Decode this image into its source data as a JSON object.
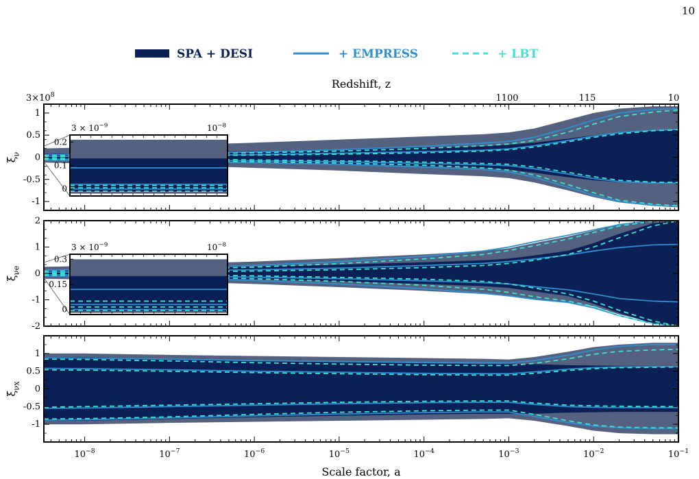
{
  "page_number": "10",
  "colors": {
    "outer_band": "#54617f",
    "inner_band": "#0b2057",
    "empress_line": "#2f8fd0",
    "lbt_line": "#3ee4cf",
    "legend_spa": "#0b2057",
    "legend_empress_text": "#2f8fd0",
    "legend_lbt_text": "#3ee4cf"
  },
  "chart_data": {
    "type": "area",
    "legend": {
      "placement": "top-center",
      "entries": [
        {
          "label": "SPA + DESI",
          "style": "band"
        },
        {
          "label": "+ EMPRESS",
          "style": "solid"
        },
        {
          "label": "+ LBT",
          "style": "dashed"
        }
      ]
    },
    "x_axis": {
      "label": "Scale factor, a",
      "scale": "log",
      "range": [
        3.3e-09,
        0.1
      ],
      "tick_labels": [
        "10^-8",
        "10^-7",
        "10^-6",
        "10^-5",
        "10^-4",
        "10^-3",
        "10^-2",
        "10^-1"
      ]
    },
    "top_axis": {
      "label": "Redshift, z",
      "tick_labels": [
        "3×10^8",
        "1100",
        "115",
        "10"
      ]
    },
    "x": [
      3.3e-09,
      1e-08,
      1e-07,
      1e-06,
      1e-05,
      0.0001,
      0.0005,
      0.001,
      0.002,
      0.005,
      0.01,
      0.02,
      0.05,
      0.1
    ],
    "panels": [
      {
        "ylabel": "ξ_ν",
        "ylim": [
          -1.2,
          1.2
        ],
        "y_tick_labels": [
          "1",
          "0.5",
          "0",
          "-0.5",
          "-1"
        ],
        "outer_band": {
          "upper": [
            0.2,
            0.22,
            0.27,
            0.33,
            0.4,
            0.47,
            0.52,
            0.56,
            0.65,
            0.85,
            1.0,
            1.1,
            1.15,
            1.15
          ],
          "lower": [
            -0.12,
            -0.14,
            -0.18,
            -0.24,
            -0.3,
            -0.38,
            -0.43,
            -0.47,
            -0.57,
            -0.75,
            -0.9,
            -1.02,
            -1.1,
            -1.13
          ]
        },
        "inner_band": {
          "upper": [
            0.08,
            0.09,
            0.11,
            0.14,
            0.17,
            0.22,
            0.25,
            0.28,
            0.33,
            0.42,
            0.5,
            0.57,
            0.62,
            0.64
          ],
          "lower": [
            -0.06,
            -0.07,
            -0.09,
            -0.12,
            -0.15,
            -0.2,
            -0.24,
            -0.28,
            -0.35,
            -0.45,
            -0.52,
            -0.56,
            -0.58,
            -0.58
          ]
        },
        "series": [
          {
            "name": "+ EMPRESS",
            "values": [
              0.06,
              0.07,
              0.09,
              0.12,
              0.17,
              0.25,
              0.32,
              0.36,
              0.45,
              0.66,
              0.84,
              1.0,
              1.08,
              1.1
            ]
          },
          {
            "name": "+ EMPRESS",
            "values": [
              0.02,
              0.03,
              0.04,
              0.06,
              0.09,
              0.13,
              0.16,
              0.19,
              0.26,
              0.38,
              0.48,
              0.56,
              0.61,
              0.63
            ]
          },
          {
            "name": "+ EMPRESS",
            "values": [
              -0.04,
              -0.05,
              -0.06,
              -0.08,
              -0.1,
              -0.14,
              -0.17,
              -0.19,
              -0.26,
              -0.38,
              -0.48,
              -0.55,
              -0.58,
              -0.58
            ]
          },
          {
            "name": "+ EMPRESS",
            "values": [
              -0.06,
              -0.07,
              -0.09,
              -0.12,
              -0.16,
              -0.22,
              -0.28,
              -0.33,
              -0.45,
              -0.68,
              -0.86,
              -1.0,
              -1.08,
              -1.1
            ]
          },
          {
            "name": "+ LBT",
            "values": [
              0.04,
              0.05,
              0.07,
              0.1,
              0.14,
              0.2,
              0.26,
              0.3,
              0.38,
              0.57,
              0.75,
              0.92,
              1.02,
              1.07
            ]
          },
          {
            "name": "+ LBT",
            "values": [
              0.01,
              0.02,
              0.03,
              0.05,
              0.07,
              0.1,
              0.14,
              0.17,
              0.23,
              0.35,
              0.45,
              0.53,
              0.6,
              0.62
            ]
          },
          {
            "name": "+ LBT",
            "values": [
              -0.02,
              -0.03,
              -0.04,
              -0.06,
              -0.08,
              -0.11,
              -0.14,
              -0.16,
              -0.22,
              -0.34,
              -0.44,
              -0.52,
              -0.56,
              -0.57
            ]
          },
          {
            "name": "+ LBT",
            "values": [
              -0.05,
              -0.06,
              -0.08,
              -0.1,
              -0.13,
              -0.18,
              -0.24,
              -0.29,
              -0.4,
              -0.62,
              -0.8,
              -0.97,
              -1.06,
              -1.1
            ]
          }
        ],
        "inset": {
          "x_tick_labels": [
            "3 × 10^-9",
            "10^-8"
          ],
          "y_tick_labels": [
            "0.2",
            "0.1",
            "0"
          ],
          "ylim": [
            -0.03,
            0.23
          ],
          "outer_band": [
            -0.02,
            0.21
          ],
          "inner_band": [
            -0.01,
            0.13
          ],
          "lines": [
            {
              "kind": "+ EMPRESS",
              "value": 0.09
            },
            {
              "kind": "+ EMPRESS",
              "value": 0.02
            },
            {
              "kind": "+ EMPRESS",
              "value": 0.0
            },
            {
              "kind": "+ LBT",
              "value": 0.015
            },
            {
              "kind": "+ LBT",
              "value": 0.005
            },
            {
              "kind": "+ LBT",
              "value": -0.01
            }
          ]
        }
      },
      {
        "ylabel": "ξ_νe",
        "ylim": [
          -2,
          2
        ],
        "y_tick_labels": [
          "2",
          "1",
          "0",
          "-1",
          "-2"
        ],
        "outer_band": {
          "upper": [
            0.25,
            0.28,
            0.36,
            0.45,
            0.58,
            0.72,
            0.85,
            0.95,
            1.15,
            1.4,
            1.62,
            1.85,
            2.0,
            2.0
          ],
          "lower": [
            -0.2,
            -0.23,
            -0.3,
            -0.4,
            -0.52,
            -0.66,
            -0.78,
            -0.87,
            -0.98,
            -1.1,
            -1.25,
            -1.55,
            -1.85,
            -2.0
          ]
        },
        "inner_band": {
          "upper": [
            0.13,
            0.15,
            0.2,
            0.26,
            0.33,
            0.42,
            0.5,
            0.56,
            0.68,
            0.86,
            1.15,
            1.5,
            1.9,
            2.0
          ],
          "lower": [
            -0.1,
            -0.12,
            -0.16,
            -0.22,
            -0.3,
            -0.4,
            -0.48,
            -0.55,
            -0.68,
            -0.86,
            -1.15,
            -1.5,
            -1.9,
            -2.0
          ]
        },
        "series": [
          {
            "name": "+ EMPRESS",
            "values": [
              0.12,
              0.14,
              0.2,
              0.3,
              0.45,
              0.65,
              0.85,
              1.0,
              1.2,
              1.45,
              1.65,
              1.85,
              2.0,
              2.0
            ]
          },
          {
            "name": "+ EMPRESS",
            "values": [
              0.05,
              0.06,
              0.09,
              0.14,
              0.2,
              0.3,
              0.38,
              0.45,
              0.55,
              0.7,
              0.85,
              0.98,
              1.08,
              1.1
            ]
          },
          {
            "name": "+ EMPRESS",
            "values": [
              -0.05,
              -0.06,
              -0.09,
              -0.14,
              -0.2,
              -0.28,
              -0.35,
              -0.4,
              -0.5,
              -0.62,
              -0.78,
              -0.95,
              -1.05,
              -1.08
            ]
          },
          {
            "name": "+ EMPRESS",
            "values": [
              -0.1,
              -0.12,
              -0.18,
              -0.27,
              -0.4,
              -0.58,
              -0.75,
              -0.85,
              -0.98,
              -1.1,
              -1.3,
              -1.6,
              -1.9,
              -2.0
            ]
          },
          {
            "name": "+ LBT",
            "values": [
              0.08,
              0.1,
              0.15,
              0.24,
              0.37,
              0.55,
              0.72,
              0.87,
              1.05,
              1.3,
              1.55,
              1.8,
              1.98,
              2.0
            ]
          },
          {
            "name": "+ LBT",
            "values": [
              0.02,
              0.03,
              0.05,
              0.09,
              0.14,
              0.22,
              0.3,
              0.38,
              0.5,
              0.72,
              1.0,
              1.35,
              1.8,
              2.0
            ]
          },
          {
            "name": "+ LBT",
            "values": [
              -0.02,
              -0.03,
              -0.05,
              -0.09,
              -0.15,
              -0.22,
              -0.3,
              -0.4,
              -0.55,
              -0.78,
              -1.05,
              -1.4,
              -1.8,
              -2.0
            ]
          },
          {
            "name": "+ LBT",
            "values": [
              -0.07,
              -0.09,
              -0.13,
              -0.2,
              -0.3,
              -0.45,
              -0.6,
              -0.72,
              -0.88,
              -1.05,
              -1.25,
              -1.6,
              -1.9,
              -2.0
            ]
          }
        ],
        "inset": {
          "x_tick_labels": [
            "3 × 10^-9",
            "10^-8"
          ],
          "y_tick_labels": [
            "0.3",
            "0.15",
            "0"
          ],
          "ylim": [
            -0.03,
            0.33
          ],
          "outer_band": [
            -0.02,
            0.3
          ],
          "inner_band": [
            -0.01,
            0.2
          ],
          "lines": [
            {
              "kind": "+ EMPRESS",
              "value": 0.12
            },
            {
              "kind": "+ EMPRESS",
              "value": 0.03
            },
            {
              "kind": "+ EMPRESS",
              "value": 0.0
            },
            {
              "kind": "+ LBT",
              "value": 0.05
            },
            {
              "kind": "+ LBT",
              "value": 0.015
            },
            {
              "kind": "+ LBT",
              "value": -0.005
            }
          ]
        }
      },
      {
        "ylabel": "ξ_νx",
        "ylim": [
          -1.5,
          1.5
        ],
        "y_tick_labels": [
          "1",
          "0.5",
          "0",
          "-0.5",
          "-1"
        ],
        "outer_band": {
          "upper": [
            1.0,
            1.0,
            0.96,
            0.93,
            0.9,
            0.87,
            0.85,
            0.83,
            0.9,
            1.05,
            1.18,
            1.25,
            1.3,
            1.3
          ],
          "lower": [
            -1.0,
            -1.0,
            -0.96,
            -0.93,
            -0.9,
            -0.87,
            -0.85,
            -0.83,
            -0.9,
            -1.05,
            -1.18,
            -1.25,
            -1.28,
            -1.28
          ]
        },
        "inner_band": {
          "upper": [
            0.9,
            0.9,
            0.85,
            0.8,
            0.76,
            0.72,
            0.7,
            0.7,
            0.7,
            0.67,
            0.66,
            0.65,
            0.65,
            0.65
          ],
          "lower": [
            -0.9,
            -0.9,
            -0.85,
            -0.8,
            -0.76,
            -0.72,
            -0.7,
            -0.7,
            -0.7,
            -0.67,
            -0.66,
            -0.65,
            -0.65,
            -0.65
          ]
        },
        "series": [
          {
            "name": "+ EMPRESS",
            "values": [
              0.88,
              0.87,
              0.84,
              0.8,
              0.77,
              0.75,
              0.74,
              0.74,
              0.8,
              0.95,
              1.1,
              1.2,
              1.25,
              1.25
            ]
          },
          {
            "name": "+ EMPRESS",
            "values": [
              0.58,
              0.57,
              0.54,
              0.5,
              0.47,
              0.44,
              0.43,
              0.43,
              0.48,
              0.56,
              0.6,
              0.62,
              0.63,
              0.63
            ]
          },
          {
            "name": "+ EMPRESS",
            "values": [
              -0.55,
              -0.54,
              -0.5,
              -0.46,
              -0.42,
              -0.39,
              -0.38,
              -0.38,
              -0.44,
              -0.5,
              -0.52,
              -0.53,
              -0.53,
              -0.53
            ]
          },
          {
            "name": "+ EMPRESS",
            "values": [
              -0.88,
              -0.87,
              -0.82,
              -0.76,
              -0.71,
              -0.67,
              -0.65,
              -0.65,
              -0.78,
              -0.95,
              -1.05,
              -1.1,
              -1.12,
              -1.12
            ]
          },
          {
            "name": "+ LBT",
            "values": [
              0.84,
              0.83,
              0.79,
              0.74,
              0.7,
              0.67,
              0.66,
              0.66,
              0.72,
              0.85,
              0.98,
              1.06,
              1.1,
              1.12
            ]
          },
          {
            "name": "+ LBT",
            "values": [
              0.54,
              0.53,
              0.5,
              0.46,
              0.43,
              0.4,
              0.39,
              0.39,
              0.44,
              0.52,
              0.57,
              0.6,
              0.61,
              0.62
            ]
          },
          {
            "name": "+ LBT",
            "values": [
              -0.52,
              -0.5,
              -0.46,
              -0.42,
              -0.38,
              -0.35,
              -0.34,
              -0.34,
              -0.4,
              -0.46,
              -0.48,
              -0.49,
              -0.5,
              -0.5
            ]
          },
          {
            "name": "+ LBT",
            "values": [
              -0.85,
              -0.84,
              -0.79,
              -0.72,
              -0.66,
              -0.62,
              -0.6,
              -0.6,
              -0.72,
              -0.9,
              -1.02,
              -1.08,
              -1.1,
              -1.1
            ]
          }
        ]
      }
    ]
  }
}
